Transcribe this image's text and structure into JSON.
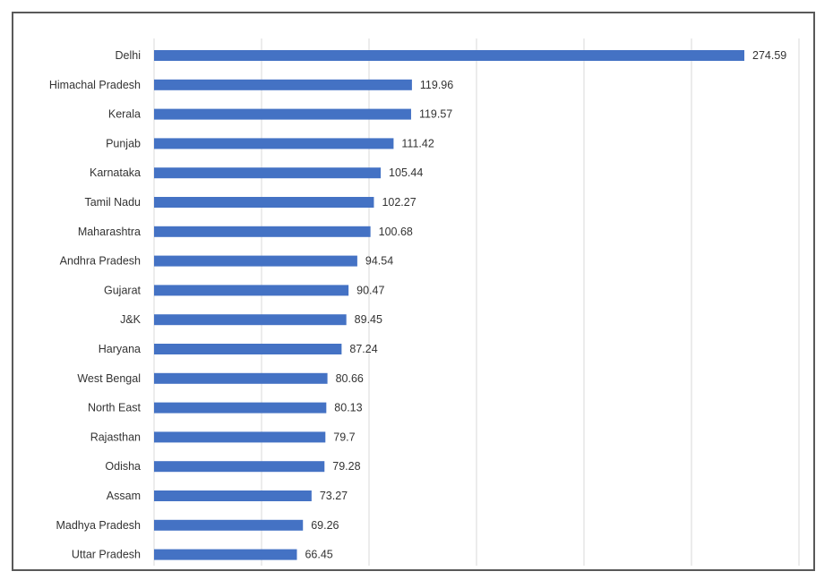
{
  "chart_data": {
    "type": "bar",
    "orientation": "horizontal",
    "categories": [
      "Delhi",
      "Himachal Pradesh",
      "Kerala",
      "Punjab",
      "Karnataka",
      "Tamil Nadu",
      "Maharashtra",
      "Andhra Pradesh",
      "Gujarat",
      "J&K",
      "Haryana",
      "West Bengal",
      "North East",
      "Rajasthan",
      "Odisha",
      "Assam",
      "Madhya Pradesh",
      "Uttar Pradesh"
    ],
    "values": [
      274.59,
      119.96,
      119.57,
      111.42,
      105.44,
      102.27,
      100.68,
      94.54,
      90.47,
      89.45,
      87.24,
      80.66,
      80.13,
      79.7,
      79.28,
      73.27,
      69.26,
      66.45
    ],
    "value_labels": [
      "274.59",
      "119.96",
      "119.57",
      "111.42",
      "105.44",
      "102.27",
      "100.68",
      "94.54",
      "90.47",
      "89.45",
      "87.24",
      "80.66",
      "80.13",
      "79.7",
      "79.28",
      "73.27",
      "69.26",
      "66.45"
    ],
    "title": "",
    "xlabel": "",
    "ylabel": "",
    "xlim": [
      0,
      300
    ],
    "grid": true,
    "grid_interval": 50,
    "x_tick_labels_shown": false,
    "legend": "none",
    "colors": {
      "bar": "#4472c4",
      "grid": "#d9d9d9",
      "frame": "#595959",
      "text": "#333333"
    }
  }
}
